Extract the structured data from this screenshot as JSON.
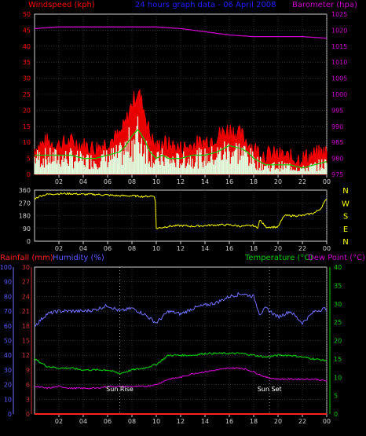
{
  "colors": {
    "background": "#000000",
    "axis": "#d0d0d0",
    "grid": "#505050",
    "windspeed_red": "#ff0000",
    "windspeed_green": "#00d000",
    "windspeed_white": "#dfffdf",
    "barometer": "#cc00cc",
    "title_blue": "#2020ff",
    "wind_dir": "#ffff00",
    "compass": "#ffff00",
    "rainfall": "#ff2020",
    "humidity_label": "#5a5aff",
    "humidity_line": "#7070ff",
    "temperature": "#00cc00",
    "dew_point": "#cc00cc",
    "rain_axis": "#cc3333"
  },
  "chart_data": [
    {
      "id": "wind-pressure",
      "type": "line",
      "title": "24 hours graph data - 06 April 2008",
      "ylabel_left": "Windspeed (kph)",
      "ylabel_right": "Barometer (hpa)",
      "ylim_left": [
        0,
        50
      ],
      "ylim_right": [
        975,
        1025
      ],
      "yticks_left": [
        "0",
        "5",
        "10",
        "15",
        "20",
        "25",
        "30",
        "35",
        "40",
        "45",
        "50"
      ],
      "yticks_right": [
        "975",
        "980",
        "985",
        "990",
        "995",
        "1000",
        "1005",
        "1010",
        "1015",
        "1020",
        "1025"
      ],
      "xticks": [
        "02",
        "04",
        "06",
        "08",
        "10",
        "12",
        "14",
        "16",
        "18",
        "20",
        "22",
        "00"
      ],
      "grid": true,
      "series": [
        {
          "name": "Windspeed (kph)",
          "x": [
            0,
            1,
            2,
            3,
            4,
            5,
            6,
            7,
            7.5,
            8,
            8.5,
            9,
            9.5,
            10,
            10.5,
            11,
            12,
            13,
            14,
            15,
            16,
            17,
            17.5,
            18,
            19,
            20,
            21,
            22,
            23,
            24
          ],
          "values": [
            8,
            10,
            9,
            10,
            9,
            8,
            10,
            12,
            16,
            22,
            26,
            20,
            12,
            8,
            10,
            9,
            8,
            9,
            10,
            12,
            14,
            12,
            10,
            8,
            6,
            6,
            5,
            5,
            6,
            7
          ]
        },
        {
          "name": "Average windspeed",
          "x": [
            0,
            1,
            2,
            3,
            4,
            5,
            6,
            7,
            7.5,
            8,
            8.5,
            9,
            9.5,
            10,
            10.5,
            11,
            12,
            13,
            14,
            15,
            16,
            17,
            17.5,
            18,
            19,
            20,
            21,
            22,
            23,
            24
          ],
          "values": [
            6,
            6,
            6,
            6,
            5,
            5,
            6,
            7,
            9,
            12,
            14,
            11,
            7,
            5,
            6,
            5,
            5,
            6,
            6,
            7,
            9,
            8,
            7,
            5,
            3,
            3,
            3,
            2,
            3,
            4
          ]
        },
        {
          "name": "Barometer (hpa)",
          "x": [
            0,
            2,
            4,
            6,
            8,
            10,
            12,
            14,
            16,
            18,
            20,
            22,
            24
          ],
          "values": [
            1020.5,
            1021,
            1021,
            1021,
            1021,
            1021,
            1020.5,
            1019.5,
            1018.5,
            1018,
            1018,
            1018,
            1017.5
          ]
        }
      ]
    },
    {
      "id": "wind-direction",
      "type": "line",
      "ylim": [
        0,
        360
      ],
      "yticks": [
        "0",
        "90",
        "180",
        "270",
        "360"
      ],
      "xticks": [
        "02",
        "04",
        "06",
        "08",
        "10",
        "12",
        "14",
        "16",
        "18",
        "20",
        "22",
        "00"
      ],
      "compass": [
        "N",
        "W",
        "S",
        "E",
        "N"
      ],
      "grid": true,
      "series": [
        {
          "name": "Wind direction",
          "x": [
            0,
            0.5,
            1,
            2,
            3,
            4,
            5,
            6,
            7,
            8,
            9,
            9.9,
            10,
            11,
            12,
            13,
            14,
            15,
            16,
            17,
            18,
            18.3,
            18.5,
            19,
            20,
            20.5,
            20.7,
            21,
            22,
            23,
            23.5,
            24
          ],
          "values": [
            300,
            320,
            330,
            335,
            335,
            330,
            330,
            325,
            320,
            320,
            315,
            320,
            90,
            105,
            110,
            105,
            110,
            115,
            115,
            105,
            110,
            90,
            150,
            100,
            100,
            180,
            180,
            180,
            180,
            200,
            230,
            300
          ]
        }
      ]
    },
    {
      "id": "temp-humidity-rain",
      "type": "line",
      "labels": {
        "rainfall": "Rainfall (mm)",
        "humidity": "Humidity (%)",
        "temperature": "Temperature (°C)",
        "dew_point": "Dew Point (°C)"
      },
      "ylim_humidity": [
        0,
        100
      ],
      "ylim_rainfall": [
        0,
        30
      ],
      "ylim_temperature": [
        0,
        40
      ],
      "yticks_humidity": [
        "0",
        "10",
        "20",
        "30",
        "40",
        "50",
        "60",
        "70",
        "80",
        "90",
        "100"
      ],
      "yticks_rainfall": [
        "0",
        "3",
        "6",
        "9",
        "12",
        "15",
        "18",
        "21",
        "24",
        "27",
        "30"
      ],
      "yticks_temperature": [
        "0",
        "5",
        "10",
        "15",
        "20",
        "25",
        "30",
        "35",
        "40"
      ],
      "xticks": [
        "02",
        "04",
        "06",
        "08",
        "10",
        "12",
        "14",
        "16",
        "18",
        "20",
        "22",
        "00"
      ],
      "annotations": [
        "Sun Rise",
        "Sun Set"
      ],
      "sunrise_hour": 7.0,
      "sunset_hour": 19.3,
      "grid": true,
      "series": [
        {
          "name": "Humidity (%)",
          "x": [
            0,
            1,
            2,
            3,
            4,
            5,
            6,
            7,
            8,
            9,
            10,
            11,
            12,
            13,
            14,
            15,
            16,
            17,
            18,
            18.5,
            19,
            20,
            21,
            22,
            23,
            24
          ],
          "values": [
            60,
            68,
            70,
            70,
            70,
            71,
            74,
            70,
            72,
            68,
            62,
            70,
            68,
            72,
            74,
            76,
            80,
            82,
            80,
            68,
            72,
            66,
            70,
            62,
            70,
            72
          ]
        },
        {
          "name": "Temperature (°C)",
          "x": [
            0,
            1,
            2,
            3,
            4,
            5,
            6,
            7,
            8,
            9,
            10,
            11,
            12,
            13,
            14,
            15,
            16,
            17,
            18,
            19,
            20,
            21,
            22,
            23,
            24
          ],
          "values": [
            15,
            13,
            12.5,
            12.5,
            12,
            12,
            12,
            11,
            12,
            12.5,
            13.5,
            16,
            16,
            16,
            16.5,
            16.5,
            16.5,
            16.5,
            16,
            15.5,
            16,
            16,
            15.5,
            15,
            14.5
          ]
        },
        {
          "name": "Dew Point (°C)",
          "x": [
            0,
            1,
            2,
            3,
            4,
            5,
            6,
            7,
            8,
            9,
            10,
            11,
            12,
            13,
            14,
            15,
            16,
            17,
            18,
            19,
            20,
            21,
            22,
            23,
            24
          ],
          "values": [
            7.5,
            7,
            7.5,
            7,
            7,
            7,
            7.5,
            7.5,
            7.5,
            7.5,
            8,
            9.5,
            10,
            11,
            11.5,
            12,
            12.5,
            12.5,
            11.5,
            10,
            9.5,
            9.5,
            9.5,
            9.5,
            9
          ]
        },
        {
          "name": "Rainfall (mm)",
          "x": [
            0,
            24
          ],
          "values": [
            0,
            0
          ]
        }
      ]
    }
  ]
}
